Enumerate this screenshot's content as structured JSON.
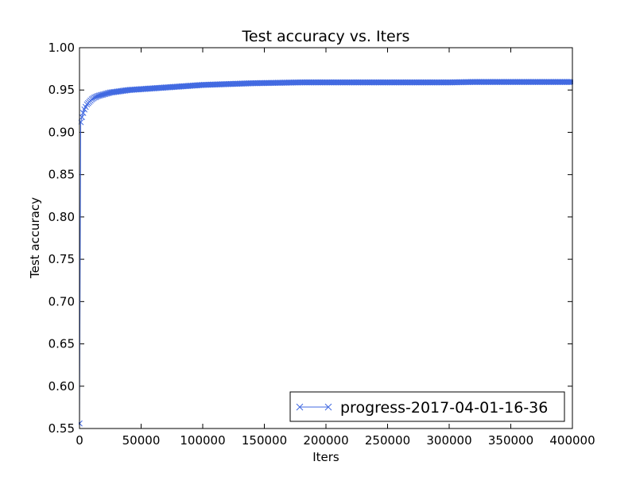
{
  "chart_data": {
    "type": "line",
    "title": "Test accuracy  vs. Iters",
    "xlabel": "Iters",
    "ylabel": "Test accuracy",
    "xlim": [
      0,
      400000
    ],
    "ylim": [
      0.55,
      1.0
    ],
    "xticks": [
      0,
      50000,
      100000,
      150000,
      200000,
      250000,
      300000,
      350000,
      400000
    ],
    "xtick_labels": [
      "0",
      "50000",
      "100000",
      "150000",
      "200000",
      "250000",
      "300000",
      "350000",
      "400000"
    ],
    "yticks": [
      0.55,
      0.6,
      0.65,
      0.7,
      0.75,
      0.8,
      0.85,
      0.9,
      0.95,
      1.0
    ],
    "ytick_labels": [
      "0.55",
      "0.60",
      "0.65",
      "0.70",
      "0.75",
      "0.80",
      "0.85",
      "0.90",
      "0.95",
      "1.00"
    ],
    "grid": false,
    "legend_position": "lower-right",
    "series": [
      {
        "name": "progress-2017-04-01-16-36",
        "color": "#4169e1",
        "marker": "x",
        "x": [
          0,
          1000,
          2000,
          3000,
          4000,
          5000,
          6000,
          8000,
          10000,
          12000,
          15000,
          20000,
          25000,
          30000,
          40000,
          50000,
          60000,
          70000,
          80000,
          90000,
          100000,
          120000,
          140000,
          160000,
          180000,
          200000,
          220000,
          240000,
          260000,
          280000,
          300000,
          320000,
          340000,
          360000,
          380000,
          400000
        ],
        "y": [
          0.556,
          0.912,
          0.918,
          0.923,
          0.927,
          0.93,
          0.933,
          0.936,
          0.939,
          0.941,
          0.943,
          0.945,
          0.947,
          0.948,
          0.95,
          0.951,
          0.952,
          0.953,
          0.954,
          0.955,
          0.956,
          0.957,
          0.958,
          0.9585,
          0.959,
          0.959,
          0.959,
          0.959,
          0.959,
          0.959,
          0.959,
          0.9595,
          0.9595,
          0.9595,
          0.9595,
          0.9595
        ]
      }
    ]
  }
}
